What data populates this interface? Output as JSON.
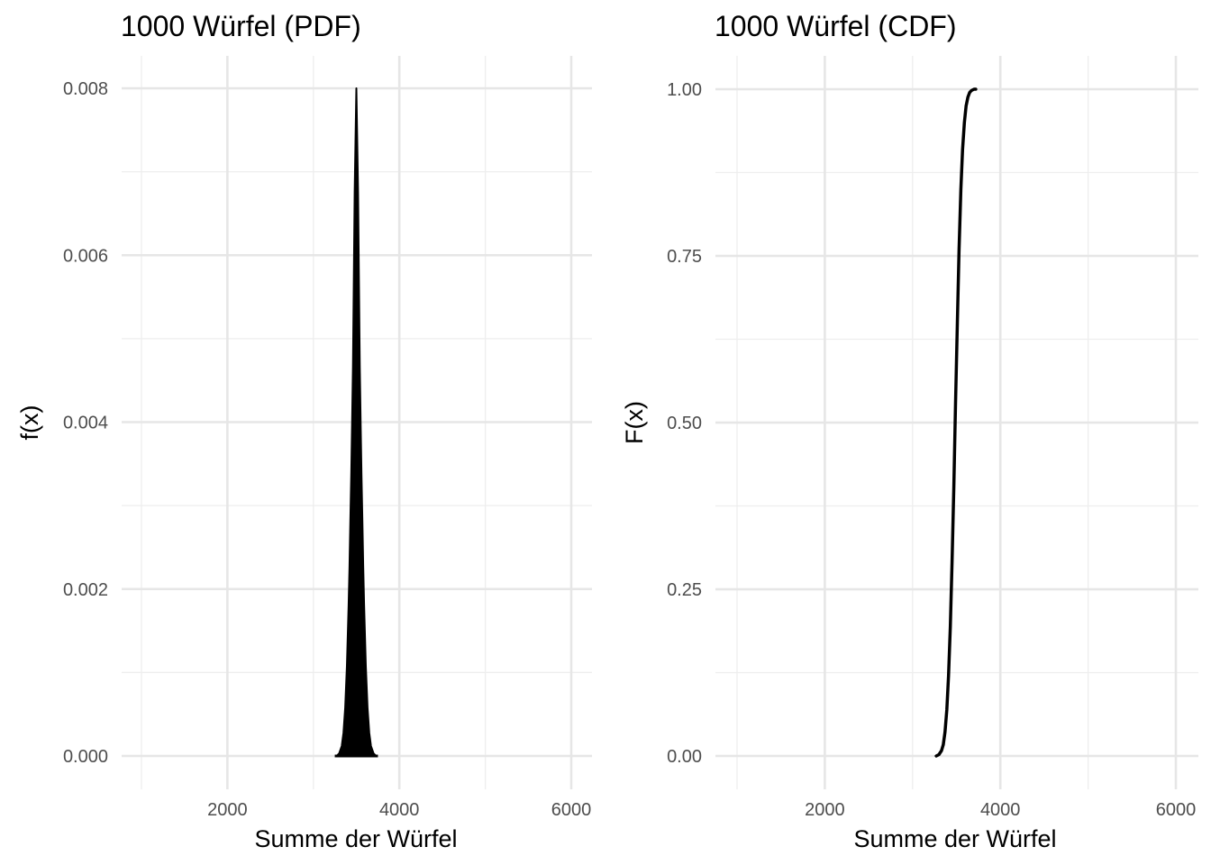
{
  "chart_data": [
    {
      "type": "area",
      "title": "1000 Würfel (PDF)",
      "xlabel": "Summe der Würfel",
      "ylabel": "f(x)",
      "xlim": [
        1000,
        6000
      ],
      "ylim": [
        0,
        0.008
      ],
      "xticks": [
        2000,
        4000,
        6000
      ],
      "xtick_labels": [
        "2000",
        "4000",
        "6000"
      ],
      "yticks": [
        0,
        0.002,
        0.004,
        0.006,
        0.008
      ],
      "ytick_labels": [
        "0.000",
        "0.002",
        "0.004",
        "0.006",
        "0.008"
      ],
      "grid": true,
      "series": [
        {
          "color": "#000000",
          "x": [
            3270,
            3300,
            3330,
            3350,
            3370,
            3390,
            3410,
            3420,
            3430,
            3440,
            3450,
            3460,
            3470,
            3480,
            3490,
            3500,
            3510,
            3520,
            3530,
            3540,
            3550,
            3560,
            3570,
            3580,
            3590,
            3610,
            3630,
            3650,
            3670,
            3700,
            3730
          ],
          "y": [
            0.0,
            3e-05,
            0.00012,
            0.00028,
            0.00058,
            0.00108,
            0.00181,
            0.00228,
            0.00281,
            0.00336,
            0.00396,
            0.00466,
            0.00563,
            0.00675,
            0.00735,
            0.008,
            0.00735,
            0.00675,
            0.00563,
            0.00466,
            0.00396,
            0.00336,
            0.00281,
            0.00228,
            0.00181,
            0.00108,
            0.00058,
            0.00028,
            0.00012,
            3e-05,
            0.0
          ]
        }
      ]
    },
    {
      "type": "line",
      "title": "1000 Würfel (CDF)",
      "xlabel": "Summe der Würfel",
      "ylabel": "F(x)",
      "xlim": [
        1000,
        6000
      ],
      "ylim": [
        0,
        1
      ],
      "xticks": [
        2000,
        4000,
        6000
      ],
      "xtick_labels": [
        "2000",
        "4000",
        "6000"
      ],
      "yticks": [
        0,
        0.25,
        0.5,
        0.75,
        1
      ],
      "ytick_labels": [
        "0.00",
        "0.25",
        "0.50",
        "0.75",
        "1.00"
      ],
      "grid": true,
      "series": [
        {
          "color": "#000000",
          "x": [
            3270,
            3300,
            3330,
            3350,
            3370,
            3390,
            3410,
            3430,
            3450,
            3470,
            3490,
            3500,
            3510,
            3530,
            3550,
            3570,
            3590,
            3610,
            3630,
            3650,
            3670,
            3700,
            3720
          ],
          "y": [
            0.0,
            0.002,
            0.008,
            0.017,
            0.036,
            0.069,
            0.12,
            0.194,
            0.29,
            0.404,
            0.53,
            0.59,
            0.65,
            0.76,
            0.85,
            0.91,
            0.95,
            0.975,
            0.988,
            0.995,
            0.998,
            1.0,
            1.0
          ]
        }
      ]
    }
  ]
}
